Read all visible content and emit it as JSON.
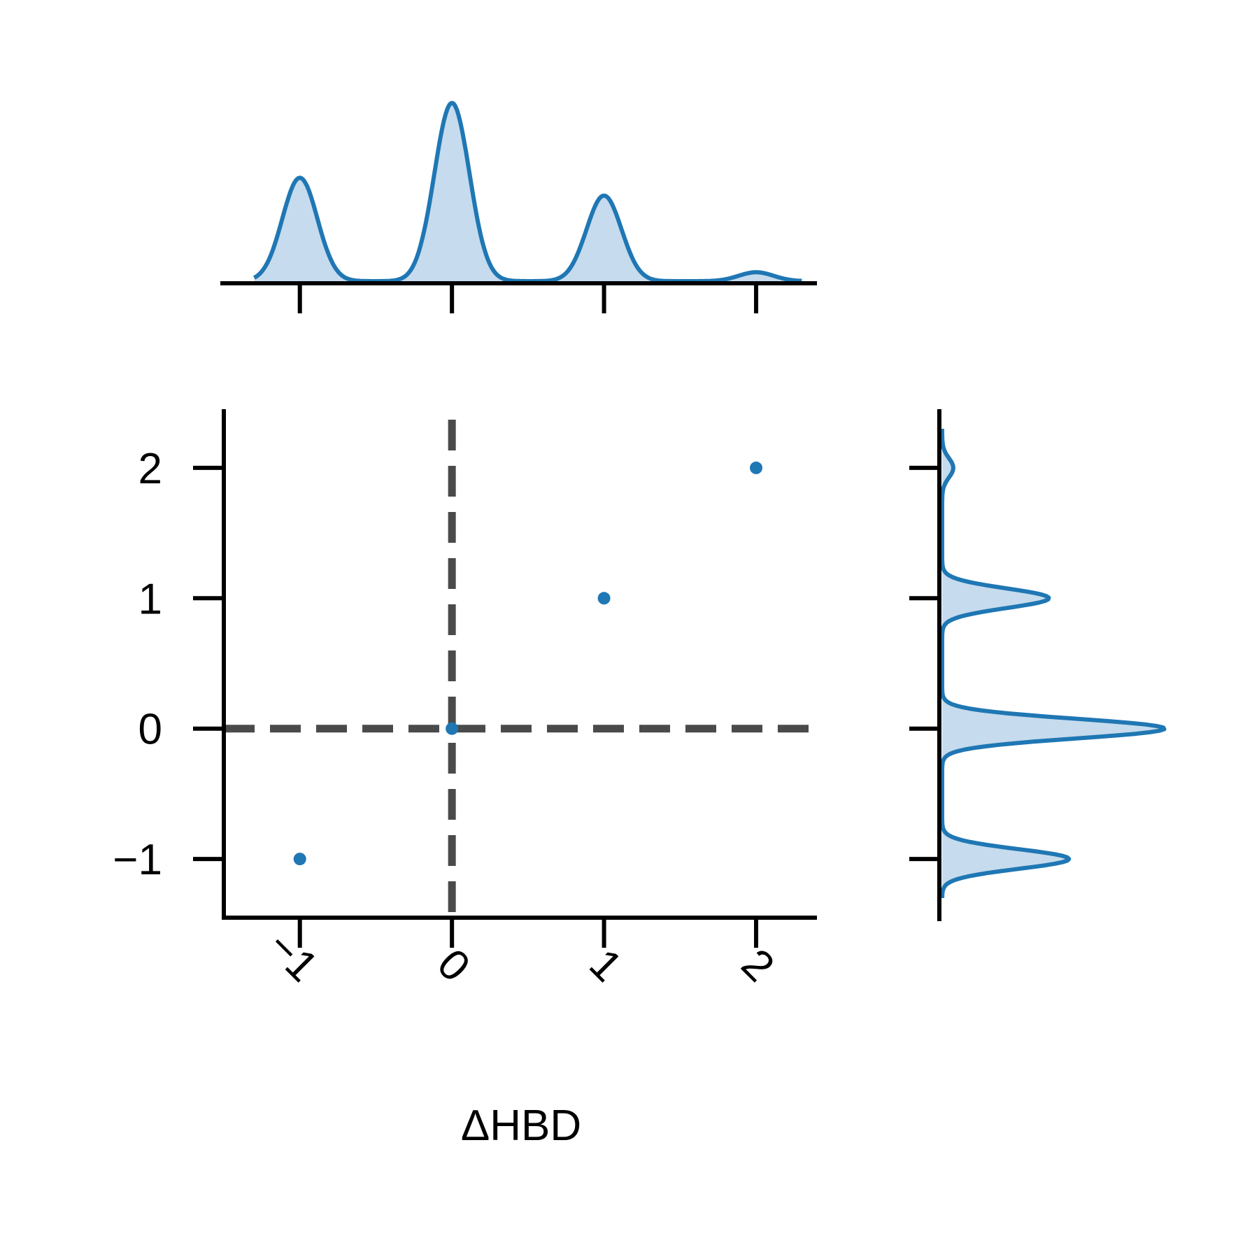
{
  "chart_data": {
    "type": "scatter",
    "xlabel": "ΔHBD",
    "ylabel": "",
    "xlim": [
      -1.5,
      2.4
    ],
    "ylim": [
      -1.45,
      2.45
    ],
    "x_ticks": [
      -1,
      0,
      1,
      2
    ],
    "x_tick_labels": [
      "−1",
      "0",
      "1",
      "2"
    ],
    "y_ticks": [
      -1,
      0,
      1,
      2
    ],
    "y_tick_labels": [
      "−1",
      "0",
      "1",
      "2"
    ],
    "points": [
      {
        "x": -1,
        "y": -1
      },
      {
        "x": 0,
        "y": 0
      },
      {
        "x": 1,
        "y": 1
      },
      {
        "x": 2,
        "y": 2
      }
    ],
    "reference_lines": [
      {
        "orientation": "vertical",
        "value": 0,
        "style": "dashed"
      },
      {
        "orientation": "horizontal",
        "value": 0,
        "style": "dashed"
      }
    ],
    "marginal_x_density": {
      "type": "area",
      "peaks": [
        {
          "center": -1,
          "height": 0.58
        },
        {
          "center": 0,
          "height": 1.0
        },
        {
          "center": 1,
          "height": 0.48
        },
        {
          "center": 2,
          "height": 0.05
        }
      ]
    },
    "marginal_y_density": {
      "type": "area",
      "peaks": [
        {
          "center": -1,
          "height": 0.57
        },
        {
          "center": 0,
          "height": 1.0
        },
        {
          "center": 1,
          "height": 0.48
        },
        {
          "center": 2,
          "height": 0.05
        }
      ]
    },
    "colors": {
      "series": "#1f77b4",
      "fill": "#c6dbed",
      "axis": "#000000",
      "ref_line": "#4a4a4a"
    },
    "grid": false,
    "legend": "none"
  }
}
